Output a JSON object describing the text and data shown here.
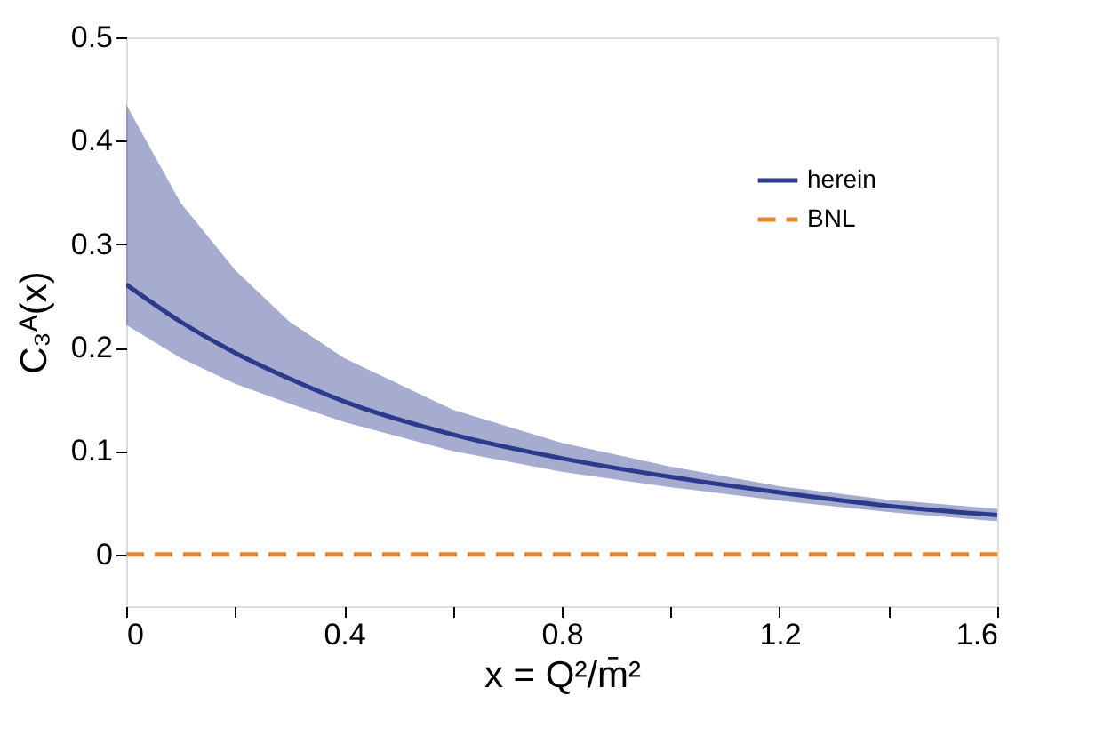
{
  "chart_data": {
    "type": "line",
    "xlabel": "x = Q²/m̄²",
    "ylabel": "C₃ᴬ(x)",
    "xlim": [
      0,
      1.6
    ],
    "ylim": [
      -0.05,
      0.5
    ],
    "xticks": [
      0,
      {
        "value": 0.2,
        "label": null
      },
      0.4,
      {
        "value": 0.6,
        "label": null
      },
      0.8,
      {
        "value": 1.0,
        "label": null
      },
      1.2,
      {
        "value": 1.4,
        "label": null
      },
      1.6
    ],
    "yticks": [
      0,
      0.1,
      0.2,
      0.3,
      0.4,
      0.5
    ],
    "grid": false,
    "legend": "top right",
    "marker": "none",
    "series": [
      {
        "name": "herein",
        "color": "#2b3a8c",
        "line_style": "solid",
        "x": [
          0,
          0.1,
          0.2,
          0.3,
          0.4,
          0.6,
          0.8,
          1.0,
          1.2,
          1.4,
          1.6
        ],
        "values": [
          0.261,
          0.225,
          0.195,
          0.17,
          0.148,
          0.116,
          0.093,
          0.075,
          0.06,
          0.047,
          0.038
        ],
        "upper": [
          0.435,
          0.34,
          0.275,
          0.225,
          0.19,
          0.14,
          0.108,
          0.085,
          0.066,
          0.053,
          0.044
        ],
        "lower": [
          0.222,
          0.19,
          0.165,
          0.146,
          0.128,
          0.1,
          0.08,
          0.065,
          0.052,
          0.041,
          0.032
        ]
      },
      {
        "name": "BNL",
        "color": "#e08a2c",
        "line_style": "dashed",
        "x": [
          0,
          1.6
        ],
        "values": [
          0,
          0
        ]
      }
    ]
  }
}
